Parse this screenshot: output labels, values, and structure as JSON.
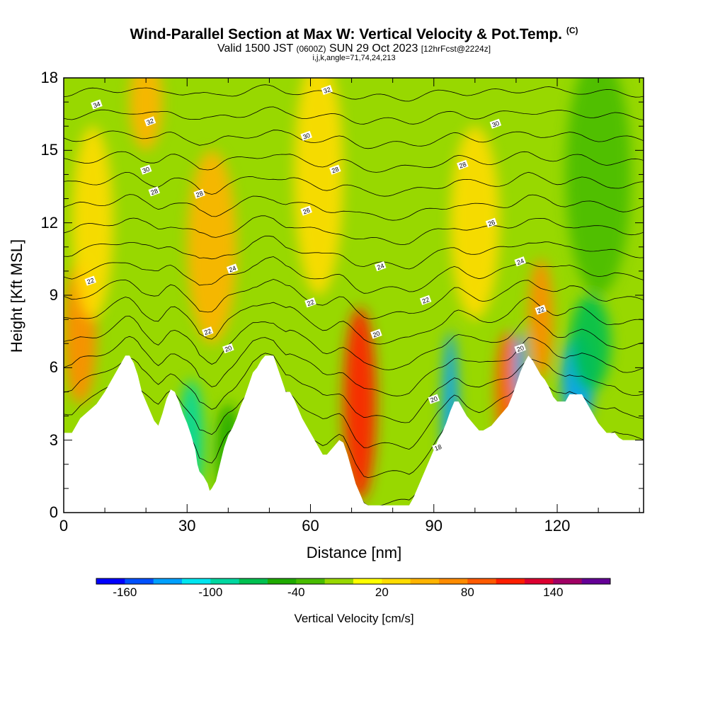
{
  "header": {
    "title": "Wind-Parallel Section at Max W: Vertical Velocity & Pot.Temp.",
    "title_mark": "(C)",
    "subtitle_main": "Valid 1500 JST",
    "subtitle_utc": "(0600Z)",
    "subtitle_date": "SUN 29 Oct 2023",
    "subtitle_fcst": "[12hrFcst@2224z]",
    "params": "i,j,k,angle=71,74,24,213"
  },
  "chart_data": {
    "type": "heatmap",
    "title": "Wind-Parallel Section at Max W: Vertical Velocity & Pot.Temp.",
    "xlabel": "Distance [nm]",
    "ylabel": "Height [Kft MSL]",
    "xlim": [
      0,
      141
    ],
    "ylim": [
      0,
      18
    ],
    "xticks": [
      0,
      30,
      60,
      90,
      120
    ],
    "yticks": [
      0,
      3,
      6,
      9,
      12,
      15,
      18
    ],
    "colorbar": {
      "label": "Vertical Velocity [cm/s]",
      "tick_values": [
        -160,
        -100,
        -40,
        20,
        80,
        140
      ],
      "min": -180,
      "max": 180,
      "colors": [
        "#0000ff",
        "#0050ff",
        "#00a0ff",
        "#00e6f0",
        "#00d7a0",
        "#00c050",
        "#1faa00",
        "#48bc00",
        "#98d800",
        "#ffff00",
        "#ffdc00",
        "#ffb400",
        "#ff8c00",
        "#ff5a00",
        "#ff1e00",
        "#dc0030",
        "#a00064",
        "#640096"
      ]
    },
    "terrain": [
      [
        0,
        3.3
      ],
      [
        2,
        3.3
      ],
      [
        3,
        3.6
      ],
      [
        4,
        3.9
      ],
      [
        6,
        4.2
      ],
      [
        8,
        4.5
      ],
      [
        10,
        5.0
      ],
      [
        11,
        5.3
      ],
      [
        12,
        5.6
      ],
      [
        13,
        5.9
      ],
      [
        14,
        6.2
      ],
      [
        15,
        6.5
      ],
      [
        16,
        6.5
      ],
      [
        17,
        6.2
      ],
      [
        18,
        5.7
      ],
      [
        19,
        5.0
      ],
      [
        20,
        4.6
      ],
      [
        21,
        4.2
      ],
      [
        22,
        3.8
      ],
      [
        23,
        3.6
      ],
      [
        24,
        4.1
      ],
      [
        25,
        4.7
      ],
      [
        26,
        5.1
      ],
      [
        27,
        5.0
      ],
      [
        28,
        4.6
      ],
      [
        29,
        4.1
      ],
      [
        30,
        3.7
      ],
      [
        31,
        3.2
      ],
      [
        32,
        2.6
      ],
      [
        32.5,
        2.0
      ],
      [
        33,
        1.7
      ],
      [
        34,
        1.5
      ],
      [
        35,
        1.2
      ],
      [
        35.5,
        0.9
      ],
      [
        36,
        1.0
      ],
      [
        37,
        1.3
      ],
      [
        38,
        2.0
      ],
      [
        39,
        2.7
      ],
      [
        40,
        3.2
      ],
      [
        41,
        3.5
      ],
      [
        42,
        3.9
      ],
      [
        43,
        4.4
      ],
      [
        44,
        4.8
      ],
      [
        45,
        5.3
      ],
      [
        46,
        5.8
      ],
      [
        47,
        6.0
      ],
      [
        48,
        6.3
      ],
      [
        49,
        6.5
      ],
      [
        50,
        6.5
      ],
      [
        51,
        6.5
      ],
      [
        52,
        6.0
      ],
      [
        53,
        5.5
      ],
      [
        54,
        5.0
      ],
      [
        55,
        5.0
      ],
      [
        56,
        4.7
      ],
      [
        57,
        4.3
      ],
      [
        58,
        3.9
      ],
      [
        59,
        3.6
      ],
      [
        60,
        3.3
      ],
      [
        61,
        3.0
      ],
      [
        62,
        2.7
      ],
      [
        63,
        2.4
      ],
      [
        64,
        2.4
      ],
      [
        65,
        2.6
      ],
      [
        66,
        2.8
      ],
      [
        67,
        3.0
      ],
      [
        68,
        2.9
      ],
      [
        69,
        2.4
      ],
      [
        70,
        1.8
      ],
      [
        71,
        1.2
      ],
      [
        72,
        0.8
      ],
      [
        73,
        0.4
      ],
      [
        74,
        0.3
      ],
      [
        75,
        0.3
      ],
      [
        77,
        0.3
      ],
      [
        80,
        0.3
      ],
      [
        82,
        0.3
      ],
      [
        84,
        0.3
      ],
      [
        85,
        0.6
      ],
      [
        86,
        1.0
      ],
      [
        87,
        1.4
      ],
      [
        88,
        1.8
      ],
      [
        89,
        2.2
      ],
      [
        90,
        2.6
      ],
      [
        91,
        3.0
      ],
      [
        92,
        3.3
      ],
      [
        93,
        3.7
      ],
      [
        94,
        4.2
      ],
      [
        95,
        4.6
      ],
      [
        96,
        4.6
      ],
      [
        97,
        4.3
      ],
      [
        98,
        4.0
      ],
      [
        99,
        3.8
      ],
      [
        100,
        3.6
      ],
      [
        101,
        3.4
      ],
      [
        102,
        3.4
      ],
      [
        103,
        3.5
      ],
      [
        104,
        3.6
      ],
      [
        105,
        3.8
      ],
      [
        106,
        4.0
      ],
      [
        107,
        4.2
      ],
      [
        108,
        4.4
      ],
      [
        109,
        4.8
      ],
      [
        110,
        5.3
      ],
      [
        111,
        5.8
      ],
      [
        112,
        6.2
      ],
      [
        113,
        6.5
      ],
      [
        114,
        6.3
      ],
      [
        115,
        6.0
      ],
      [
        116,
        5.7
      ],
      [
        117,
        5.5
      ],
      [
        118,
        5.2
      ],
      [
        119,
        4.8
      ],
      [
        120,
        4.6
      ],
      [
        121,
        4.6
      ],
      [
        122,
        4.6
      ],
      [
        123,
        4.9
      ],
      [
        124,
        4.9
      ],
      [
        125,
        4.9
      ],
      [
        126,
        4.9
      ],
      [
        127,
        4.6
      ],
      [
        128,
        4.3
      ],
      [
        129,
        4.0
      ],
      [
        130,
        3.7
      ],
      [
        131,
        3.5
      ],
      [
        132,
        3.3
      ],
      [
        133,
        3.3
      ],
      [
        134,
        3.3
      ],
      [
        135,
        3.1
      ],
      [
        136,
        3.0
      ],
      [
        141,
        3.0
      ]
    ],
    "velocity_cells": [
      {
        "x": 4,
        "z": 7.5,
        "dx": 4,
        "dz": 3.0,
        "w": 60
      },
      {
        "x": 7,
        "z": 12,
        "dx": 5,
        "dz": 4.0,
        "w": 20
      },
      {
        "x": 20,
        "z": 17,
        "dx": 4,
        "dz": 2.0,
        "w": 50
      },
      {
        "x": 31,
        "z": 3.0,
        "dx": 3,
        "dz": 2.5,
        "w": -100
      },
      {
        "x": 36,
        "z": 11,
        "dx": 6,
        "dz": 4.0,
        "w": 50
      },
      {
        "x": 40,
        "z": 2.5,
        "dx": 3,
        "dz": 2.0,
        "w": -60
      },
      {
        "x": 72,
        "z": 4.5,
        "dx": 4,
        "dz": 4.0,
        "w": 100
      },
      {
        "x": 62,
        "z": 14,
        "dx": 6,
        "dz": 5.0,
        "w": 20
      },
      {
        "x": 94,
        "z": 3.5,
        "dx": 2,
        "dz": 4.0,
        "w": -140
      },
      {
        "x": 108,
        "z": 5.0,
        "dx": 3,
        "dz": 2.5,
        "w": 80
      },
      {
        "x": 111,
        "z": 6.0,
        "dx": 1.5,
        "dz": 1.5,
        "w": -140
      },
      {
        "x": 125,
        "z": 5.5,
        "dx": 4,
        "dz": 2.0,
        "w": -140
      },
      {
        "x": 128,
        "z": 7.0,
        "dx": 5,
        "dz": 2.0,
        "w": -80
      },
      {
        "x": 116,
        "z": 8.0,
        "dx": 3,
        "dz": 2.5,
        "w": 60
      },
      {
        "x": 100,
        "z": 12,
        "dx": 6,
        "dz": 4.0,
        "w": 20
      },
      {
        "x": 130,
        "z": 14,
        "dx": 8,
        "dz": 5.0,
        "w": -40
      }
    ],
    "isentrope_labels": [
      {
        "text": "34",
        "x": 8,
        "z": 16.9
      },
      {
        "text": "32",
        "x": 21,
        "z": 16.2
      },
      {
        "text": "30",
        "x": 20,
        "z": 14.2
      },
      {
        "text": "28",
        "x": 22,
        "z": 13.3
      },
      {
        "text": "28",
        "x": 33,
        "z": 13.2
      },
      {
        "text": "24",
        "x": 41,
        "z": 10.1
      },
      {
        "text": "22",
        "x": 6.5,
        "z": 9.6
      },
      {
        "text": "22",
        "x": 35,
        "z": 7.5
      },
      {
        "text": "20",
        "x": 40,
        "z": 6.8
      },
      {
        "text": "22",
        "x": 60,
        "z": 8.7
      },
      {
        "text": "26",
        "x": 59,
        "z": 12.5
      },
      {
        "text": "30",
        "x": 59,
        "z": 15.6
      },
      {
        "text": "28",
        "x": 66,
        "z": 14.2
      },
      {
        "text": "32",
        "x": 64,
        "z": 17.5
      },
      {
        "text": "24",
        "x": 77,
        "z": 10.2
      },
      {
        "text": "20",
        "x": 76,
        "z": 7.4
      },
      {
        "text": "22",
        "x": 88,
        "z": 8.8
      },
      {
        "text": "20",
        "x": 90,
        "z": 4.7
      },
      {
        "text": "18",
        "x": 91,
        "z": 2.7
      },
      {
        "text": "28",
        "x": 97,
        "z": 14.4
      },
      {
        "text": "26",
        "x": 104,
        "z": 12.0
      },
      {
        "text": "30",
        "x": 105,
        "z": 16.1
      },
      {
        "text": "24",
        "x": 111,
        "z": 10.4
      },
      {
        "text": "22",
        "x": 116,
        "z": 8.4
      },
      {
        "text": "20",
        "x": 111,
        "z": 6.8
      }
    ]
  }
}
